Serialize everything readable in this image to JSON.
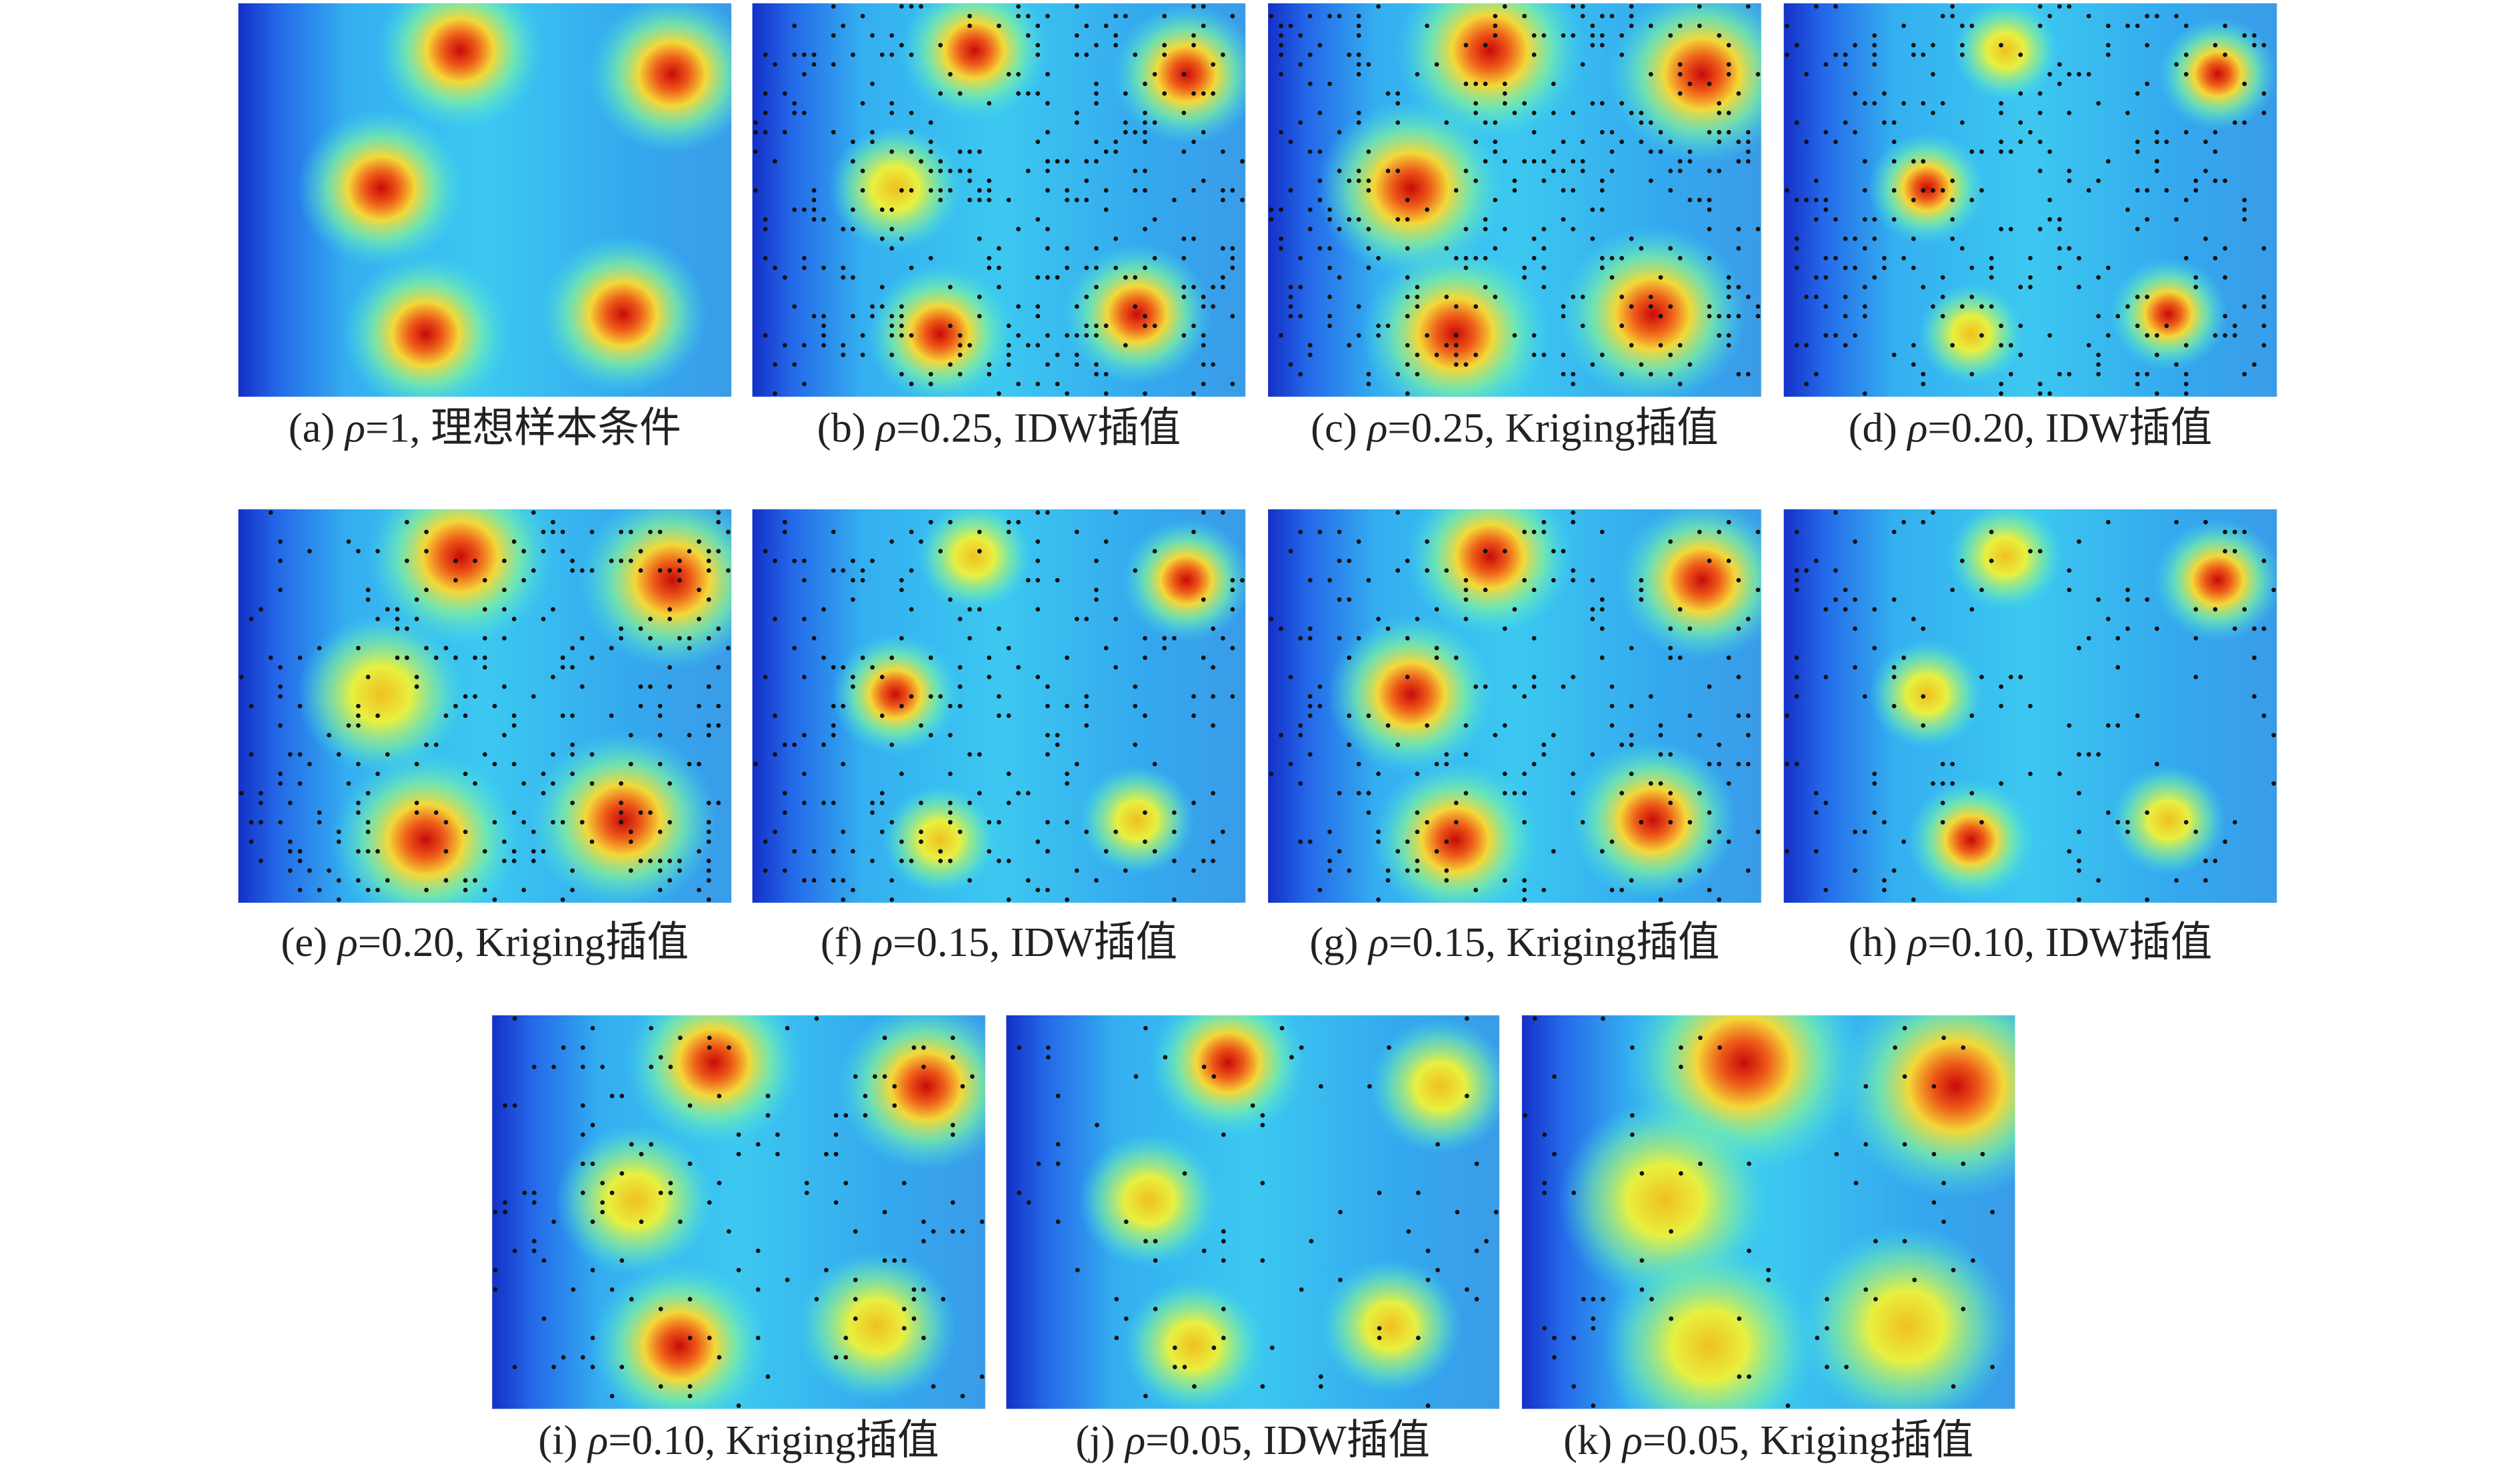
{
  "figure": {
    "panels": [
      {
        "label": "(a)",
        "symbol": "ρ",
        "text": "=1, 理想样本条件"
      },
      {
        "label": "(b)",
        "symbol": "ρ",
        "text": "=0.25, IDW插值"
      },
      {
        "label": "(c)",
        "symbol": "ρ",
        "text": "=0.25, Kriging插值"
      },
      {
        "label": "(d)",
        "symbol": "ρ",
        "text": "=0.20, IDW插值"
      },
      {
        "label": "(e)",
        "symbol": "ρ",
        "text": "=0.20, Kriging插值"
      },
      {
        "label": "(f)",
        "symbol": "ρ",
        "text": "=0.15, IDW插值"
      },
      {
        "label": "(g)",
        "symbol": "ρ",
        "text": "=0.15, Kriging插值"
      },
      {
        "label": "(h)",
        "symbol": "ρ",
        "text": "=0.10, IDW插值"
      },
      {
        "label": "(i)",
        "symbol": "ρ",
        "text": "=0.10, Kriging插值"
      },
      {
        "label": "(j)",
        "symbol": "ρ",
        "text": "=0.05, IDW插值"
      },
      {
        "label": "(k)",
        "symbol": "ρ",
        "text": "=0.05, Kriging插值"
      }
    ]
  }
}
